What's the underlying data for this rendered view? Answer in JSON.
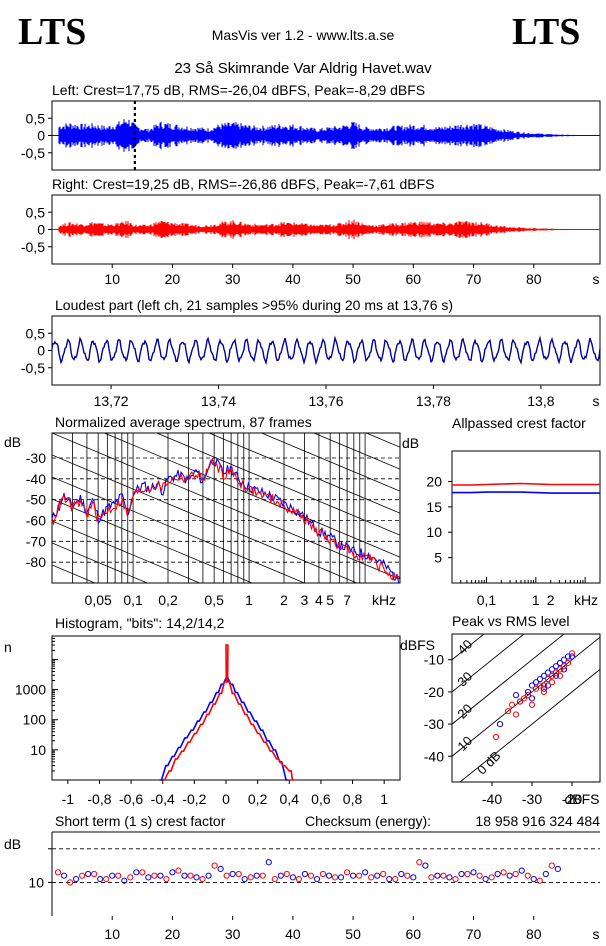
{
  "header": {
    "brand_left": "LTS",
    "brand_right": "LTS",
    "app": "MasVis ver 1.2 - www.lts.a.se",
    "track": "23 Så Skimrande Var Aldrig Havet.wav"
  },
  "colors": {
    "left": "#0000ff",
    "right": "#ff0000",
    "dark_blue": "#00009a",
    "grid": "#000000"
  },
  "chart_data": [
    {
      "id": "left_waveform",
      "type": "area",
      "title": "Left: Crest=17,75 dB, RMS=-26,04 dBFS, Peak=-8,29 dBFS",
      "ylim": [
        -1,
        1
      ],
      "yticks": [
        "0,5",
        "0",
        "-0,5"
      ],
      "ytick_values": [
        0.5,
        0,
        -0.5
      ],
      "xlim": [
        0,
        91
      ],
      "marker_at_s": 13.76,
      "envelope_x": [
        1,
        3,
        5,
        7,
        9,
        11,
        12.5,
        14,
        16,
        18,
        20,
        22,
        24,
        26,
        28,
        30,
        32,
        34,
        36,
        38,
        40,
        42,
        44,
        46,
        48,
        50,
        52,
        54,
        56,
        58,
        60,
        62,
        64,
        66,
        68,
        70,
        72,
        74,
        76,
        78,
        80,
        82,
        84,
        86
      ],
      "envelope_y": [
        0.32,
        0.4,
        0.34,
        0.36,
        0.28,
        0.4,
        0.58,
        0.3,
        0.2,
        0.42,
        0.36,
        0.3,
        0.26,
        0.22,
        0.36,
        0.4,
        0.34,
        0.28,
        0.3,
        0.36,
        0.34,
        0.28,
        0.2,
        0.26,
        0.3,
        0.42,
        0.26,
        0.24,
        0.28,
        0.3,
        0.34,
        0.32,
        0.26,
        0.3,
        0.36,
        0.38,
        0.3,
        0.22,
        0.16,
        0.1,
        0.07,
        0.05,
        0.03,
        0.02
      ]
    },
    {
      "id": "right_waveform",
      "type": "area",
      "title": "Right: Crest=19,25 dB, RMS=-26,86 dBFS, Peak=-7,61 dBFS",
      "ylim": [
        -1,
        1
      ],
      "yticks": [
        "0,5",
        "0",
        "-0,5"
      ],
      "ytick_values": [
        0.5,
        0,
        -0.5
      ],
      "xlim": [
        0,
        91
      ],
      "xlabel": "s",
      "xticks": [
        "10",
        "20",
        "30",
        "40",
        "50",
        "60",
        "70",
        "80"
      ],
      "xtick_values": [
        10,
        20,
        30,
        40,
        50,
        60,
        70,
        80
      ],
      "envelope_x": [
        1,
        3,
        5,
        7,
        9,
        11,
        12.5,
        14,
        16,
        18,
        20,
        22,
        24,
        26,
        28,
        30,
        32,
        34,
        36,
        38,
        40,
        42,
        44,
        46,
        48,
        50,
        52,
        54,
        56,
        58,
        60,
        62,
        64,
        66,
        68,
        70,
        72,
        74,
        76,
        78,
        80,
        82,
        84,
        86
      ],
      "envelope_y": [
        0.14,
        0.22,
        0.18,
        0.24,
        0.16,
        0.2,
        0.26,
        0.14,
        0.14,
        0.28,
        0.22,
        0.18,
        0.14,
        0.14,
        0.22,
        0.28,
        0.2,
        0.16,
        0.16,
        0.22,
        0.22,
        0.18,
        0.14,
        0.16,
        0.2,
        0.32,
        0.16,
        0.14,
        0.18,
        0.2,
        0.24,
        0.24,
        0.2,
        0.2,
        0.26,
        0.24,
        0.2,
        0.12,
        0.08,
        0.06,
        0.04,
        0.03,
        0.02,
        0.02
      ]
    },
    {
      "id": "loudest_part",
      "type": "line",
      "title": "Loudest part (left  ch, 21 samples >95% during 20 ms at 13,76 s)",
      "ylim": [
        -1,
        1
      ],
      "yticks": [
        "0,5",
        "0",
        "-0,5"
      ],
      "ytick_values": [
        0.5,
        0,
        -0.5
      ],
      "xlim": [
        13.709,
        13.811
      ],
      "xlabel": "s",
      "xticks": [
        "13,72",
        "13,74",
        "13,76",
        "13,78",
        "13,8"
      ],
      "xtick_values": [
        13.72,
        13.74,
        13.76,
        13.78,
        13.8
      ],
      "cycles": 43,
      "amplitude": 0.28
    },
    {
      "id": "spectrum",
      "type": "line",
      "title": "Normalized average spectrum, 87 frames",
      "ylabel": "dB",
      "xlabel": "kHz",
      "yticks": [
        "-30",
        "-40",
        "-50",
        "-60",
        "-70",
        "-80"
      ],
      "ytick_values": [
        -30,
        -40,
        -50,
        -60,
        -70,
        -80
      ],
      "ylim": [
        -90,
        -18
      ],
      "xticks": [
        "0,05",
        "0,1",
        "0,2",
        "0,5",
        "1",
        "2",
        "3",
        "4",
        "5",
        "7"
      ],
      "xtick_values": [
        0.05,
        0.1,
        0.2,
        0.5,
        1,
        2,
        3,
        4,
        5,
        7
      ],
      "xlim": [
        0.02,
        20
      ],
      "series": [
        {
          "color": "#0000ff",
          "x": [
            0.02,
            0.022,
            0.025,
            0.03,
            0.035,
            0.04,
            0.045,
            0.05,
            0.06,
            0.07,
            0.08,
            0.09,
            0.1,
            0.12,
            0.14,
            0.16,
            0.18,
            0.2,
            0.25,
            0.3,
            0.35,
            0.4,
            0.45,
            0.5,
            0.6,
            0.7,
            0.8,
            0.9,
            1.0,
            1.2,
            1.5,
            2.0,
            2.5,
            3.0,
            3.5,
            4.0,
            5.0,
            6.0,
            7.0,
            8.0,
            10.0,
            12.0,
            15.0,
            20.0
          ],
          "y": [
            -60,
            -55,
            -48,
            -53,
            -49,
            -56,
            -50,
            -59,
            -54,
            -52,
            -48,
            -57,
            -47,
            -43,
            -45,
            -42,
            -46,
            -40,
            -38,
            -41,
            -36,
            -42,
            -33,
            -31,
            -37,
            -35,
            -40,
            -42,
            -44,
            -46,
            -48,
            -52,
            -55,
            -58,
            -62,
            -65,
            -68,
            -72,
            -73,
            -75,
            -76,
            -78,
            -82,
            -90
          ]
        },
        {
          "color": "#ff0000",
          "x": [
            0.02,
            0.022,
            0.025,
            0.03,
            0.035,
            0.04,
            0.045,
            0.05,
            0.06,
            0.07,
            0.08,
            0.09,
            0.1,
            0.12,
            0.14,
            0.16,
            0.18,
            0.2,
            0.25,
            0.3,
            0.35,
            0.4,
            0.45,
            0.5,
            0.6,
            0.7,
            0.8,
            0.9,
            1.0,
            1.2,
            1.5,
            2.0,
            2.5,
            3.0,
            3.5,
            4.0,
            5.0,
            6.0,
            7.0,
            8.0,
            10.0,
            12.0,
            15.0,
            20.0
          ],
          "y": [
            -61,
            -56,
            -49,
            -54,
            -51,
            -57,
            -52,
            -60,
            -55,
            -53,
            -50,
            -58,
            -48,
            -45,
            -44,
            -43,
            -44,
            -41,
            -39,
            -40,
            -37,
            -41,
            -34,
            -32,
            -38,
            -36,
            -41,
            -43,
            -45,
            -47,
            -49,
            -53,
            -56,
            -59,
            -63,
            -66,
            -69,
            -73,
            -74,
            -76,
            -77,
            -80,
            -84,
            -90
          ]
        }
      ]
    },
    {
      "id": "allpassed_crest",
      "type": "line",
      "title": "Allpassed crest factor",
      "ylabel": "dB",
      "xlabel": "kHz",
      "yticks": [
        "20",
        "15",
        "10",
        "5"
      ],
      "ytick_values": [
        20,
        15,
        10,
        5
      ],
      "ylim": [
        0,
        26
      ],
      "xticks": [
        "0,1",
        "1",
        "2"
      ],
      "xtick_values": [
        0.1,
        1,
        2
      ],
      "xlim": [
        0.02,
        20
      ],
      "series": [
        {
          "color": "#ff0000",
          "x": [
            0.02,
            0.05,
            0.1,
            0.2,
            0.5,
            1,
            2,
            5,
            10,
            20
          ],
          "y": [
            19.3,
            19.3,
            19.4,
            19.5,
            19.6,
            19.5,
            19.4,
            19.4,
            19.4,
            19.4
          ]
        },
        {
          "color": "#0000ff",
          "x": [
            0.02,
            0.05,
            0.1,
            0.2,
            0.5,
            1,
            2,
            5,
            10,
            20
          ],
          "y": [
            17.8,
            17.8,
            17.9,
            17.9,
            17.9,
            17.8,
            17.7,
            17.7,
            17.7,
            17.7
          ]
        }
      ]
    },
    {
      "id": "histogram",
      "type": "line",
      "title": "Histogram, \"bits\": 14,2/14,2",
      "ylabel": "n",
      "yticks": [
        "1000",
        "100",
        "10"
      ],
      "ytick_values": [
        1000,
        100,
        10
      ],
      "ylim": [
        1,
        60000
      ],
      "xticks": [
        "-1",
        "-0,8",
        "-0,6",
        "-0,4",
        "-0,2",
        "0",
        "0,2",
        "0,4",
        "0,6",
        "0,8",
        "1"
      ],
      "xtick_values": [
        -1,
        -0.8,
        -0.6,
        -0.4,
        -0.2,
        0,
        0.2,
        0.4,
        0.6,
        0.8,
        1
      ],
      "xlim": [
        -1.1,
        1.1
      ],
      "series": [
        {
          "color": "#0000ff",
          "x": [
            -0.42,
            -0.38,
            -0.34,
            -0.3,
            -0.26,
            -0.22,
            -0.18,
            -0.14,
            -0.1,
            -0.06,
            -0.03,
            0,
            0.03,
            0.06,
            0.1,
            0.14,
            0.18,
            0.22,
            0.26,
            0.3,
            0.34,
            0.38
          ],
          "y": [
            1,
            3,
            6,
            12,
            25,
            45,
            90,
            180,
            380,
            800,
            1500,
            2400,
            1500,
            800,
            380,
            180,
            90,
            45,
            20,
            10,
            4,
            1
          ]
        },
        {
          "color": "#ff0000",
          "x": [
            -0.4,
            -0.36,
            -0.32,
            -0.28,
            -0.24,
            -0.2,
            -0.16,
            -0.12,
            -0.08,
            -0.04,
            -0.01,
            0,
            0.01,
            0.04,
            0.08,
            0.12,
            0.16,
            0.2,
            0.24,
            0.28,
            0.32,
            0.36,
            0.4,
            0.42
          ],
          "y": [
            1,
            2,
            5,
            9,
            18,
            35,
            70,
            150,
            330,
            750,
            1800,
            30000,
            1800,
            750,
            330,
            150,
            70,
            35,
            18,
            9,
            5,
            3,
            2,
            1
          ]
        }
      ]
    },
    {
      "id": "peak_vs_rms",
      "type": "scatter",
      "title": "Peak vs RMS level",
      "ylabel": "dBFS",
      "xlabel": "dBFS",
      "yticks": [
        "-10",
        "-20",
        "-30",
        "-40"
      ],
      "ytick_values": [
        -10,
        -20,
        -30,
        -40
      ],
      "ylim": [
        -48,
        -2
      ],
      "xticks": [
        "-40",
        "-30",
        "-20"
      ],
      "xtick_values": [
        -40,
        -30,
        -20
      ],
      "xlim": [
        -50,
        -13
      ],
      "diag_labels": [
        "40",
        "30",
        "20",
        "10",
        "0 dB"
      ],
      "diag_values": [
        40,
        30,
        20,
        10,
        0
      ],
      "series": [
        {
          "color": "#0000ff",
          "x": [
            -38,
            -34,
            -33,
            -31,
            -30,
            -29,
            -28,
            -27,
            -26,
            -25,
            -24,
            -23,
            -22,
            -21,
            -20,
            -24,
            -27,
            -30,
            -26,
            -22
          ],
          "y": [
            -30,
            -21,
            -23,
            -20,
            -18,
            -17,
            -16,
            -15,
            -14,
            -13,
            -12,
            -11,
            -10,
            -9,
            -9,
            -15,
            -19,
            -22,
            -18,
            -13
          ]
        },
        {
          "color": "#ff0000",
          "x": [
            -39,
            -36,
            -35,
            -33,
            -32,
            -31,
            -29,
            -28,
            -27,
            -26,
            -25,
            -24,
            -23,
            -22,
            -21,
            -20,
            -30,
            -27,
            -25,
            -23,
            -34
          ],
          "y": [
            -34,
            -26,
            -24,
            -23,
            -22,
            -21,
            -19,
            -18,
            -18,
            -16,
            -15,
            -14,
            -13,
            -12,
            -11,
            -8,
            -24,
            -20,
            -17,
            -15,
            -27
          ]
        }
      ]
    },
    {
      "id": "short_term_crest",
      "type": "scatter",
      "title": "Short term (1 s) crest factor",
      "checksum_label": "Checksum (energy):",
      "checksum_value": "18 958 916 324 484",
      "ylabel": "dB",
      "xlabel": "s",
      "yticks": [
        "10"
      ],
      "ytick_values": [
        10
      ],
      "ylim": [
        0,
        25
      ],
      "dashed_at": [
        10,
        20
      ],
      "xticks": [
        "10",
        "20",
        "30",
        "40",
        "50",
        "60",
        "70",
        "80"
      ],
      "xtick_values": [
        10,
        20,
        30,
        40,
        50,
        60,
        70,
        80
      ],
      "xlim": [
        0,
        91
      ],
      "series": [
        {
          "color": "#0000ff",
          "x": [
            2,
            4,
            6,
            8,
            10,
            12,
            14,
            16,
            18,
            20,
            22,
            24,
            26,
            28,
            30,
            32,
            34,
            36,
            38,
            40,
            42,
            44,
            46,
            48,
            50,
            52,
            54,
            56,
            58,
            60,
            62,
            64,
            66,
            68,
            70,
            72,
            74,
            76,
            78,
            80,
            82,
            84
          ],
          "y": [
            12,
            11,
            12.5,
            11,
            12,
            10.5,
            13,
            11.5,
            12,
            13,
            12,
            11.5,
            12,
            14,
            12.5,
            11,
            12,
            16,
            12,
            11.5,
            12.5,
            11,
            12,
            11.5,
            12,
            13,
            12,
            11,
            12.5,
            11.5,
            15,
            12,
            11.5,
            12.5,
            13,
            11,
            12.5,
            12,
            13.5,
            11,
            12.5,
            14
          ]
        },
        {
          "color": "#ff0000",
          "x": [
            1,
            3,
            5,
            7,
            9,
            11,
            13,
            15,
            17,
            19,
            21,
            23,
            25,
            27,
            29,
            31,
            33,
            35,
            37,
            39,
            41,
            43,
            45,
            47,
            49,
            51,
            53,
            55,
            57,
            59,
            61,
            63,
            65,
            67,
            69,
            71,
            73,
            75,
            77,
            79,
            81,
            83
          ],
          "y": [
            13,
            10,
            12,
            12.5,
            11,
            12,
            11.5,
            13,
            12,
            11,
            13.5,
            12,
            11,
            15,
            12,
            12.5,
            11.5,
            12,
            11,
            12.5,
            11,
            12,
            12.5,
            11.5,
            13,
            12,
            11.5,
            12.5,
            11,
            12,
            16,
            11.5,
            12,
            11,
            12.5,
            12,
            11.5,
            13,
            12.5,
            12,
            10.5,
            15
          ]
        }
      ]
    }
  ]
}
